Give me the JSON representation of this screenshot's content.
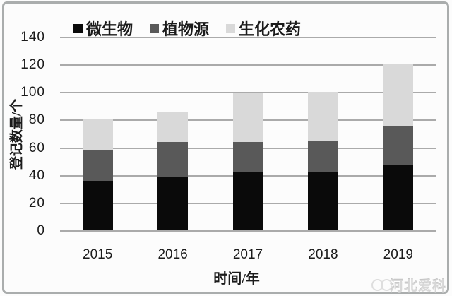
{
  "chart_data": {
    "type": "bar",
    "stacked": true,
    "categories": [
      "2015",
      "2016",
      "2017",
      "2018",
      "2019"
    ],
    "series": [
      {
        "name": "微生物",
        "color": "#0a0a0a",
        "values": [
          36,
          39,
          42,
          42,
          47
        ]
      },
      {
        "name": "植物源",
        "color": "#595959",
        "values": [
          22,
          25,
          22,
          23,
          28
        ]
      },
      {
        "name": "生化农药",
        "color": "#d9d9d9",
        "values": [
          22,
          22,
          35,
          35,
          45
        ]
      }
    ],
    "totals": [
      80,
      86,
      99,
      100,
      120
    ],
    "xlabel": "时间/年",
    "ylabel": "登记数量/个",
    "ylim": [
      0,
      140
    ],
    "yticks": [
      0,
      20,
      40,
      60,
      80,
      100,
      120,
      140
    ],
    "grid": "horizontal",
    "legend_position": "top"
  },
  "colors": {
    "gridline": "#aaaaaa",
    "frame_border": "#aaadad",
    "text": "#1b1b1b",
    "watermark": "#d7d7d7"
  },
  "watermark": {
    "text": "河北爱科"
  }
}
